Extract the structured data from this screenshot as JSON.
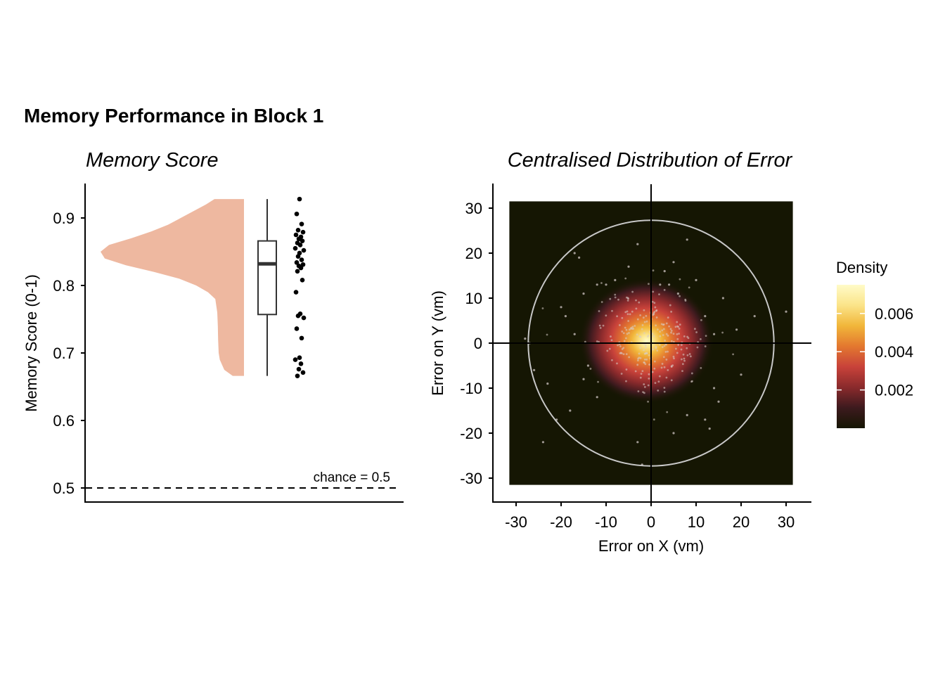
{
  "figure": {
    "title": "Memory Performance in Block 1"
  },
  "chart_data": [
    {
      "type": "raincloud",
      "title": "Memory Score",
      "xlabel": "",
      "ylabel": "Memory Score (0-1)",
      "ylim": [
        0.48,
        0.95
      ],
      "yticks": [
        "0.5",
        "0.6",
        "0.7",
        "0.8",
        "0.9"
      ],
      "reference_line": {
        "y": 0.5,
        "label": "chance = 0.5",
        "style": "dashed"
      },
      "violin_color": "#EEB8A0",
      "density": [
        [
          0.666,
          0.4
        ],
        [
          0.675,
          0.7
        ],
        [
          0.69,
          0.86
        ],
        [
          0.7,
          0.9
        ],
        [
          0.72,
          0.92
        ],
        [
          0.74,
          0.93
        ],
        [
          0.76,
          0.95
        ],
        [
          0.78,
          1.02
        ],
        [
          0.79,
          1.28
        ],
        [
          0.8,
          1.7
        ],
        [
          0.81,
          2.3
        ],
        [
          0.82,
          3.2
        ],
        [
          0.83,
          4.2
        ],
        [
          0.84,
          4.95
        ],
        [
          0.85,
          5.1
        ],
        [
          0.86,
          4.8
        ],
        [
          0.87,
          4.0
        ],
        [
          0.88,
          3.3
        ],
        [
          0.89,
          2.7
        ],
        [
          0.9,
          2.25
        ],
        [
          0.91,
          1.8
        ],
        [
          0.92,
          1.35
        ],
        [
          0.928,
          1.05
        ]
      ],
      "boxplot": {
        "min": 0.666,
        "q1": 0.757,
        "median": 0.832,
        "q3": 0.866,
        "max": 0.928
      },
      "points": [
        0.928,
        0.906,
        0.891,
        0.882,
        0.879,
        0.875,
        0.872,
        0.869,
        0.866,
        0.863,
        0.86,
        0.855,
        0.852,
        0.848,
        0.843,
        0.838,
        0.834,
        0.831,
        0.829,
        0.826,
        0.821,
        0.808,
        0.79,
        0.758,
        0.755,
        0.752,
        0.736,
        0.722,
        0.693,
        0.69,
        0.684,
        0.676,
        0.671,
        0.666
      ]
    },
    {
      "type": "heatmap",
      "title": "Centralised Distribution of Error",
      "xlabel": "Error on X (vm)",
      "ylabel": "Error on Y (vm)",
      "xlim": [
        -35,
        35
      ],
      "ylim": [
        -35,
        35
      ],
      "xticks": [
        "-30",
        "-20",
        "-10",
        "0",
        "10",
        "20",
        "30"
      ],
      "yticks": [
        "-30",
        "-20",
        "-10",
        "0",
        "10",
        "20",
        "30"
      ],
      "extent": [
        -31.5,
        31.5
      ],
      "circle_radius": 27.3,
      "density_peak": 0.0075,
      "legend": {
        "title": "Density",
        "ticks": [
          "0.002",
          "0.004",
          "0.006"
        ],
        "tick_values": [
          0.002,
          0.004,
          0.006
        ],
        "range": [
          0,
          0.0075
        ],
        "colors": [
          "#151603",
          "#3d1a1e",
          "#8a2a2c",
          "#c8423a",
          "#e3782f",
          "#f1b63a",
          "#fbe489",
          "#fffbc8"
        ]
      },
      "points": [
        [
          -17,
          20
        ],
        [
          -16,
          19
        ],
        [
          -3,
          22
        ],
        [
          8,
          23
        ],
        [
          5,
          18
        ],
        [
          -12,
          13
        ],
        [
          -10,
          13
        ],
        [
          2,
          13
        ],
        [
          4,
          13
        ],
        [
          -20,
          8
        ],
        [
          -19,
          6
        ],
        [
          23,
          6
        ],
        [
          19,
          3
        ],
        [
          30,
          7
        ],
        [
          -27,
          0
        ],
        [
          -28,
          1
        ],
        [
          -26,
          -6
        ],
        [
          -23,
          -9
        ],
        [
          -18,
          -15
        ],
        [
          -21,
          -17
        ],
        [
          -24,
          -22
        ],
        [
          -3,
          -22
        ],
        [
          -2,
          -27
        ],
        [
          5,
          -20
        ],
        [
          12,
          -17
        ],
        [
          8,
          -16
        ],
        [
          13,
          -19
        ],
        [
          20,
          -7
        ],
        [
          14,
          -10
        ],
        [
          15,
          -13
        ],
        [
          -15,
          -8
        ],
        [
          -12,
          -12
        ],
        [
          -14,
          -5
        ],
        [
          16,
          10
        ],
        [
          10,
          14
        ],
        [
          -8,
          14
        ],
        [
          6,
          11
        ],
        [
          3,
          16
        ],
        [
          -5,
          17
        ],
        [
          12,
          6
        ],
        [
          14,
          2
        ],
        [
          -17,
          2
        ],
        [
          -15,
          11
        ]
      ]
    }
  ]
}
